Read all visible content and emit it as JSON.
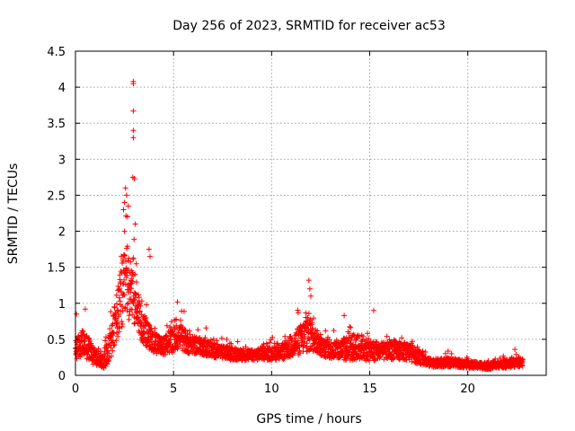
{
  "chart_data": {
    "type": "scatter",
    "title": "Day 256 of 2023, SRMTID for receiver ac53",
    "xlabel": "GPS time / hours",
    "ylabel": "SRMTID / TECUs",
    "xlim": [
      0,
      24
    ],
    "ylim": [
      0,
      4.5
    ],
    "x_ticks": [
      0,
      5,
      10,
      15,
      20
    ],
    "x_tick_labels": [
      "0",
      "5",
      "10",
      "15",
      "20"
    ],
    "y_ticks": [
      0,
      0.5,
      1,
      1.5,
      2,
      2.5,
      3,
      3.5,
      4,
      4.5
    ],
    "y_tick_labels": [
      "0",
      "0.5",
      "1",
      "1.5",
      "2",
      "2.5",
      "3",
      "3.5",
      "4",
      "4.5"
    ],
    "grid": true,
    "marker": "+",
    "series": [
      {
        "name": "ac53",
        "color": "#ff0000",
        "profile": {
          "x": [
            0.0,
            0.3,
            0.6,
            1.0,
            1.4,
            1.7,
            2.0,
            2.3,
            2.6,
            2.9,
            3.1,
            3.4,
            3.7,
            4.0,
            4.5,
            5.0,
            5.3,
            5.7,
            6.0,
            6.5,
            7.0,
            7.5,
            8.0,
            8.5,
            9.0,
            9.5,
            10.0,
            10.5,
            11.0,
            11.5,
            11.9,
            12.2,
            12.6,
            13.0,
            13.5,
            14.0,
            14.5,
            15.0,
            15.5,
            16.0,
            16.5,
            17.0,
            17.5,
            18.0,
            18.5,
            19.0,
            19.5,
            20.0,
            20.5,
            21.0,
            21.5,
            22.0,
            22.5,
            22.8
          ],
          "y": [
            0.35,
            0.45,
            0.4,
            0.25,
            0.18,
            0.35,
            0.7,
            1.0,
            1.3,
            1.25,
            1.0,
            0.7,
            0.55,
            0.45,
            0.4,
            0.5,
            0.55,
            0.45,
            0.42,
            0.4,
            0.35,
            0.32,
            0.3,
            0.28,
            0.28,
            0.3,
            0.3,
            0.32,
            0.4,
            0.5,
            0.6,
            0.5,
            0.38,
            0.35,
            0.35,
            0.38,
            0.4,
            0.35,
            0.32,
            0.35,
            0.35,
            0.32,
            0.25,
            0.18,
            0.17,
            0.18,
            0.17,
            0.15,
            0.14,
            0.13,
            0.15,
            0.16,
            0.18,
            0.18
          ],
          "spread": [
            0.25,
            0.3,
            0.3,
            0.2,
            0.15,
            0.3,
            0.5,
            0.8,
            0.9,
            0.8,
            0.6,
            0.4,
            0.3,
            0.25,
            0.2,
            0.3,
            0.3,
            0.25,
            0.2,
            0.2,
            0.18,
            0.15,
            0.15,
            0.12,
            0.12,
            0.14,
            0.15,
            0.18,
            0.25,
            0.35,
            0.45,
            0.3,
            0.2,
            0.2,
            0.25,
            0.3,
            0.3,
            0.25,
            0.2,
            0.22,
            0.22,
            0.2,
            0.15,
            0.1,
            0.1,
            0.1,
            0.1,
            0.08,
            0.08,
            0.08,
            0.08,
            0.1,
            0.1,
            0.1
          ]
        },
        "points_per_hour": 120,
        "outliers": [
          {
            "x": 2.95,
            "y": 4.08
          },
          {
            "x": 2.95,
            "y": 4.05
          },
          {
            "x": 2.95,
            "y": 3.67
          },
          {
            "x": 2.95,
            "y": 3.4
          },
          {
            "x": 2.95,
            "y": 3.3
          },
          {
            "x": 2.92,
            "y": 2.75
          },
          {
            "x": 3.0,
            "y": 2.73
          },
          {
            "x": 2.55,
            "y": 2.6
          },
          {
            "x": 2.6,
            "y": 2.5
          },
          {
            "x": 2.5,
            "y": 2.4
          },
          {
            "x": 2.7,
            "y": 2.35
          },
          {
            "x": 2.45,
            "y": 2.3
          },
          {
            "x": 2.65,
            "y": 2.2
          },
          {
            "x": 3.05,
            "y": 2.1
          },
          {
            "x": 2.5,
            "y": 2.0
          },
          {
            "x": 3.75,
            "y": 1.75
          },
          {
            "x": 3.8,
            "y": 1.65
          },
          {
            "x": 3.1,
            "y": 1.55
          },
          {
            "x": 11.9,
            "y": 1.32
          },
          {
            "x": 11.95,
            "y": 1.2
          },
          {
            "x": 12.0,
            "y": 1.1
          },
          {
            "x": 5.2,
            "y": 1.02
          },
          {
            "x": 15.2,
            "y": 0.9
          },
          {
            "x": 0.5,
            "y": 0.92
          },
          {
            "x": 0.05,
            "y": 0.85
          },
          {
            "x": 13.7,
            "y": 0.83
          },
          {
            "x": 22.4,
            "y": 0.36
          }
        ]
      }
    ]
  }
}
